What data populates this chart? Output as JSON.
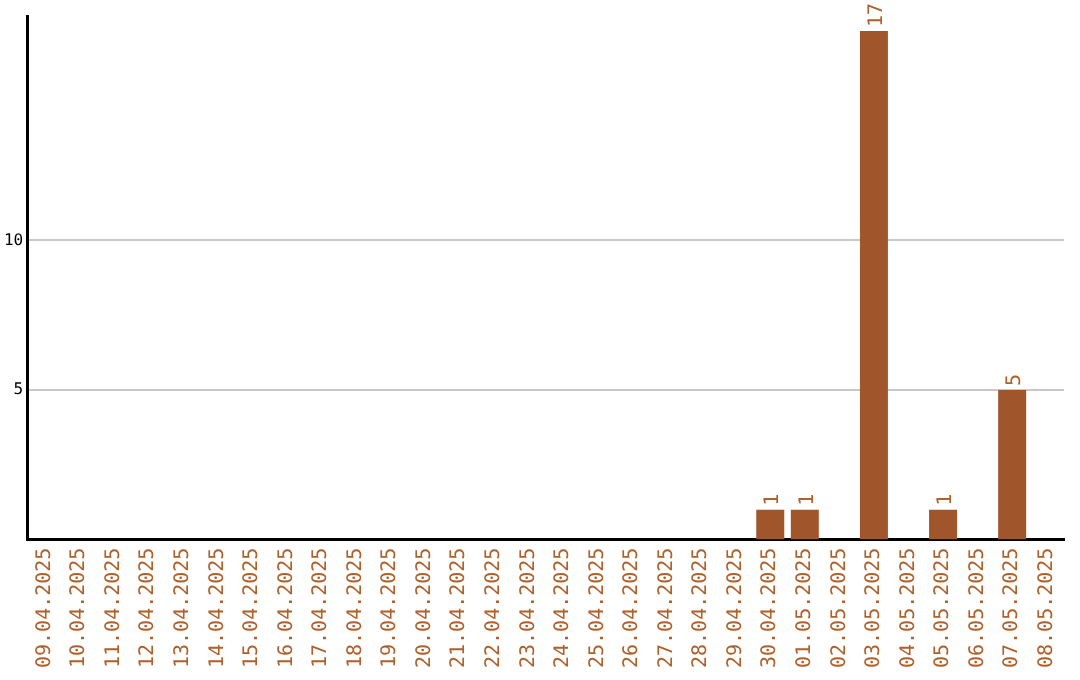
{
  "chart_data": {
    "type": "bar",
    "categories": [
      "09.04.2025",
      "10.04.2025",
      "11.04.2025",
      "12.04.2025",
      "13.04.2025",
      "14.04.2025",
      "15.04.2025",
      "16.04.2025",
      "17.04.2025",
      "18.04.2025",
      "19.04.2025",
      "20.04.2025",
      "21.04.2025",
      "22.04.2025",
      "23.04.2025",
      "24.04.2025",
      "25.04.2025",
      "26.04.2025",
      "27.04.2025",
      "28.04.2025",
      "29.04.2025",
      "30.04.2025",
      "01.05.2025",
      "02.05.2025",
      "03.05.2025",
      "04.05.2025",
      "05.05.2025",
      "06.05.2025",
      "07.05.2025",
      "08.05.2025"
    ],
    "values": [
      0,
      0,
      0,
      0,
      0,
      0,
      0,
      0,
      0,
      0,
      0,
      0,
      0,
      0,
      0,
      0,
      0,
      0,
      0,
      0,
      0,
      1,
      1,
      0,
      17,
      0,
      1,
      0,
      5,
      0
    ],
    "value_labels": [
      null,
      null,
      null,
      null,
      null,
      null,
      null,
      null,
      null,
      null,
      null,
      null,
      null,
      null,
      null,
      null,
      null,
      null,
      null,
      null,
      null,
      "1",
      "1",
      null,
      "17",
      null,
      "1",
      null,
      "5",
      null
    ],
    "color": "#a0562a",
    "ylim": [
      0,
      17.5
    ],
    "yticks": [
      5,
      10
    ],
    "grid": "y",
    "legend": false
  }
}
